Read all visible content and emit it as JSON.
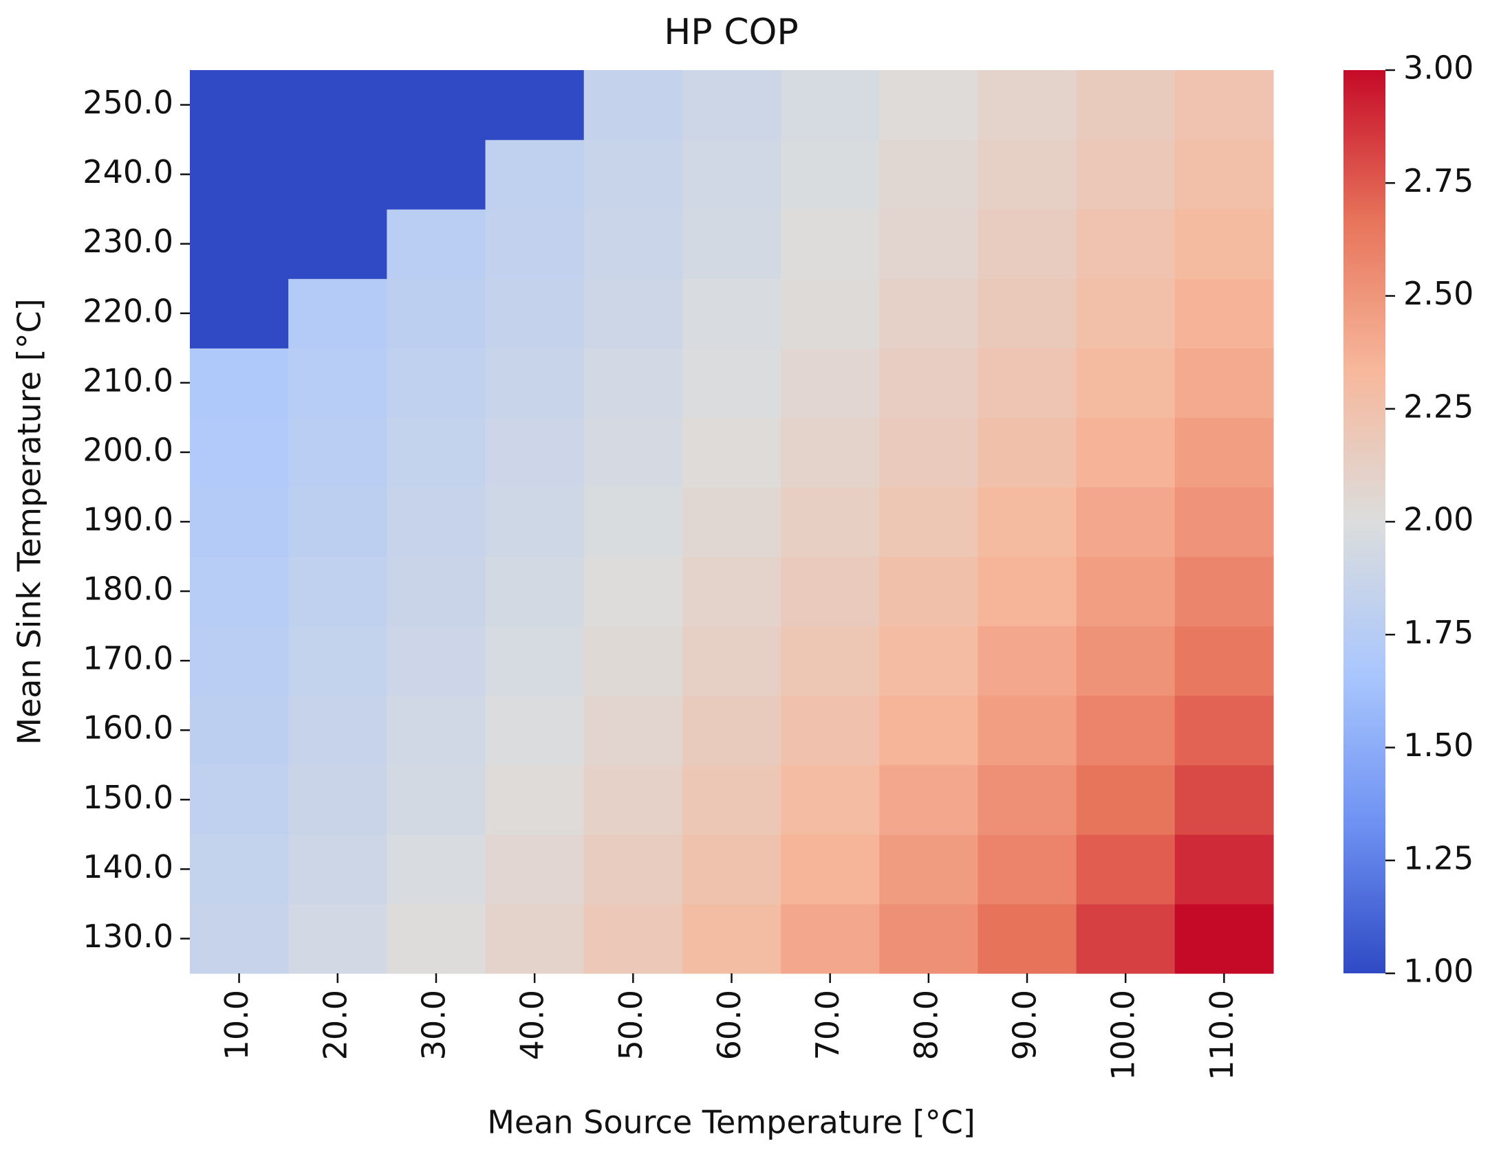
{
  "chart_data": {
    "type": "heatmap",
    "title": "HP COP",
    "xlabel": "Mean Source Temperature [°C]",
    "ylabel": "Mean Sink Temperature [°C]",
    "x": [
      "10.0",
      "20.0",
      "30.0",
      "40.0",
      "50.0",
      "60.0",
      "70.0",
      "80.0",
      "90.0",
      "100.0",
      "110.0"
    ],
    "y": [
      "130.0",
      "140.0",
      "150.0",
      "160.0",
      "170.0",
      "180.0",
      "190.0",
      "200.0",
      "210.0",
      "220.0",
      "230.0",
      "240.0",
      "250.0"
    ],
    "values": [
      [
        1.85,
        1.93,
        2.01,
        2.09,
        2.19,
        2.29,
        2.41,
        2.53,
        2.67,
        2.83,
        3.0
      ],
      [
        1.83,
        1.9,
        1.97,
        2.06,
        2.15,
        2.24,
        2.35,
        2.47,
        2.59,
        2.74,
        2.9
      ],
      [
        1.81,
        1.87,
        1.94,
        2.02,
        2.11,
        2.2,
        2.3,
        2.41,
        2.53,
        2.66,
        2.8
      ],
      [
        1.79,
        1.85,
        1.92,
        1.99,
        2.07,
        2.16,
        2.25,
        2.35,
        2.46,
        2.59,
        2.72
      ],
      [
        1.77,
        1.83,
        1.89,
        1.96,
        2.04,
        2.12,
        2.21,
        2.3,
        2.41,
        2.52,
        2.64
      ],
      [
        1.75,
        1.81,
        1.87,
        1.94,
        2.01,
        2.09,
        2.17,
        2.26,
        2.35,
        2.46,
        2.58
      ],
      [
        1.73,
        1.79,
        1.85,
        1.91,
        1.98,
        2.05,
        2.13,
        2.21,
        2.31,
        2.41,
        2.51
      ],
      [
        1.71,
        1.77,
        1.83,
        1.89,
        1.95,
        2.02,
        2.09,
        2.17,
        2.26,
        2.36,
        2.46
      ],
      [
        1.7,
        1.75,
        1.81,
        1.86,
        1.93,
        1.99,
        2.06,
        2.14,
        2.22,
        2.31,
        2.4
      ],
      [
        1.0,
        1.73,
        1.79,
        1.84,
        1.9,
        1.97,
        2.03,
        2.11,
        2.18,
        2.27,
        2.36
      ],
      [
        1.0,
        1.0,
        1.77,
        1.82,
        1.88,
        1.94,
        2.01,
        2.07,
        2.15,
        2.23,
        2.31
      ],
      [
        1.0,
        1.0,
        1.0,
        1.81,
        1.86,
        1.92,
        1.98,
        2.05,
        2.12,
        2.19,
        2.27
      ],
      [
        1.0,
        1.0,
        1.0,
        1.0,
        1.84,
        1.9,
        1.96,
        2.02,
        2.09,
        2.16,
        2.23
      ]
    ],
    "colormap": [
      "#2f4ac4",
      "#6f92f3",
      "#aac7fd",
      "#dcdddd",
      "#f7b89c",
      "#e7745b",
      "#c50a28"
    ],
    "clim": [
      1,
      3
    ],
    "colorbar_ticks": [
      {
        "value": 1,
        "label": "1.00"
      },
      {
        "value": 1.25,
        "label": "1.25"
      },
      {
        "value": 1.5,
        "label": "1.50"
      },
      {
        "value": 1.75,
        "label": "1.75"
      },
      {
        "value": 2,
        "label": "2.00"
      },
      {
        "value": 2.25,
        "label": "2.25"
      },
      {
        "value": 2.5,
        "label": "2.50"
      },
      {
        "value": 2.75,
        "label": "2.75"
      },
      {
        "value": 3,
        "label": "3.00"
      }
    ]
  }
}
